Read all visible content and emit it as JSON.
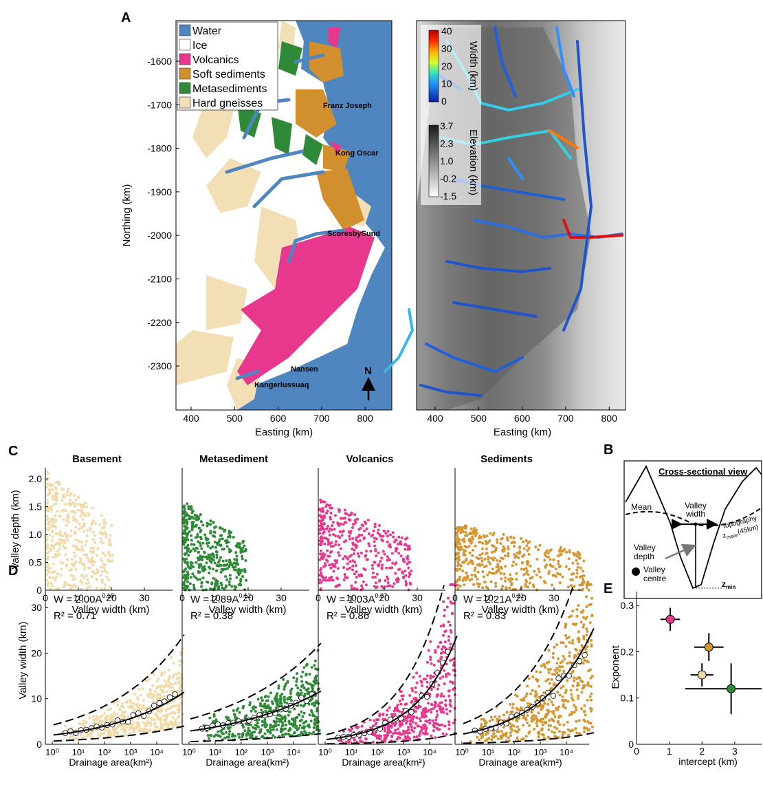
{
  "panel_labels": {
    "a": "A",
    "b": "B",
    "c": "C",
    "d": "D",
    "e": "E"
  },
  "map": {
    "ylabel": "Northing (km)",
    "xlabel": "Easting (km)",
    "yticks": [
      "-1600",
      "-1700",
      "-1800",
      "-1900",
      "-2000",
      "-2100",
      "-2200",
      "-2300"
    ],
    "xticks": [
      "400",
      "500",
      "600",
      "700",
      "800"
    ],
    "legend": [
      {
        "label": "Water",
        "color": "#4f86c0"
      },
      {
        "label": "Ice",
        "color": "#ffffff"
      },
      {
        "label": "Volcanics",
        "color": "#e8388d"
      },
      {
        "label": "Soft sediments",
        "color": "#d18f2d"
      },
      {
        "label": "Metasediments",
        "color": "#2f8a37"
      },
      {
        "label": "Hard gneisses",
        "color": "#f3dfb6"
      }
    ],
    "places": [
      "Franz Joseph",
      "Kong Oscar",
      "ScoresbySund",
      "Nansen",
      "Kangerlussuaq"
    ],
    "north": "N"
  },
  "map2": {
    "xlabel": "Easting (km)",
    "xticks": [
      "400",
      "500",
      "600",
      "700",
      "800"
    ],
    "width_label": "Width (km)",
    "width_ticks": [
      "40",
      "30",
      "20",
      "10",
      "0"
    ],
    "elev_label": "Elevation (km)",
    "elev_ticks": [
      "3.7",
      "2.3",
      "1.0",
      "-0.2",
      "-1.5"
    ]
  },
  "crosssection": {
    "title": "Cross-sectional view",
    "mean": "Mean",
    "valley_width": "Valley width",
    "topography": "topography",
    "zmean": "z",
    "zmean_sub": "mean",
    "zmean_rest": "(45km)",
    "valley_depth": "Valley depth",
    "valley_centre": "Valley centre",
    "zmin": "z",
    "zmin_sub": "min"
  },
  "chart_data": [
    {
      "panel": "C",
      "type": "scatter",
      "ylabel": "Valley depth (km)",
      "xlabel": "Valley width (km)",
      "ylim": [
        0,
        2.2
      ],
      "yticks": [
        "0",
        "0.5",
        "1.0",
        "1.5",
        "2.0"
      ],
      "xticks": [
        "0",
        "10",
        "20",
        "30"
      ],
      "panels": [
        {
          "title": "Basement",
          "color": "#f2d9a8",
          "x_range": [
            0,
            20
          ],
          "y_range": [
            0,
            2.15
          ]
        },
        {
          "title": "Metasediment",
          "color": "#2f8a37",
          "x_range": [
            0,
            19
          ],
          "y_range": [
            0,
            1.6
          ]
        },
        {
          "title": "Volcanics",
          "color": "#e8388d",
          "x_range": [
            0,
            28
          ],
          "y_range": [
            0,
            1.65
          ]
        },
        {
          "title": "Sediments",
          "color": "#d6952f",
          "x_range": [
            0,
            40
          ],
          "y_range": [
            0,
            1.2
          ]
        }
      ]
    },
    {
      "panel": "D",
      "type": "scatter",
      "ylabel": "Valley width (km)",
      "xlabel": "Drainage area(km²)",
      "xscale": "log",
      "xlim": [
        1,
        100000
      ],
      "ylim": [
        0,
        35
      ],
      "yticks": [
        "0",
        "10",
        "20",
        "30"
      ],
      "xticks": [
        "10⁰",
        "10¹",
        "10²",
        "10³",
        "10⁴"
      ],
      "panels": [
        {
          "color": "#f2d9a8",
          "eq": "W = 2.00A",
          "exp": "0.15",
          "r2": "R² = 0.71",
          "a": 2.0,
          "b": 0.15,
          "upper_factor": 2.1,
          "lower_factor": 0.35
        },
        {
          "color": "#2f8a37",
          "eq": "W = 2.89A",
          "exp": "0.12",
          "r2": "R² = 0.38",
          "a": 2.89,
          "b": 0.12,
          "upper_factor": 1.9,
          "lower_factor": 0.2
        },
        {
          "color": "#e8388d",
          "eq": "W = 1.03A",
          "exp": "0.27",
          "r2": "R² = 0.86",
          "a": 1.03,
          "b": 0.27,
          "upper_factor": 2.0,
          "lower_factor": 0.1
        },
        {
          "color": "#d6952f",
          "eq": "W = 2.21A",
          "exp": "0.21",
          "r2": "R² = 0.83",
          "a": 2.21,
          "b": 0.21,
          "upper_factor": 2.0,
          "lower_factor": 0.1
        }
      ]
    },
    {
      "panel": "E",
      "type": "scatter",
      "ylabel": "Exponent",
      "xlabel": "intercept (km)",
      "xlim": [
        0,
        4.2
      ],
      "ylim": [
        0,
        0.33
      ],
      "xticks": [
        "0",
        "1",
        "2",
        "3",
        "4"
      ],
      "yticks": [
        "0",
        "0.1",
        "0.2",
        "0.3"
      ],
      "points": [
        {
          "name": "Volcanics",
          "x": 1.03,
          "y": 0.27,
          "xerr": 0.3,
          "yerr": 0.025,
          "color": "#e8388d"
        },
        {
          "name": "Sediments",
          "x": 2.21,
          "y": 0.21,
          "xerr": 0.45,
          "yerr": 0.03,
          "color": "#d6952f"
        },
        {
          "name": "Basement",
          "x": 2.0,
          "y": 0.15,
          "xerr": 0.35,
          "yerr": 0.025,
          "color": "#f2d9a8"
        },
        {
          "name": "Metasediment",
          "x": 2.89,
          "y": 0.12,
          "xerr": 1.4,
          "yerr": 0.055,
          "color": "#2f8a37"
        }
      ]
    }
  ]
}
